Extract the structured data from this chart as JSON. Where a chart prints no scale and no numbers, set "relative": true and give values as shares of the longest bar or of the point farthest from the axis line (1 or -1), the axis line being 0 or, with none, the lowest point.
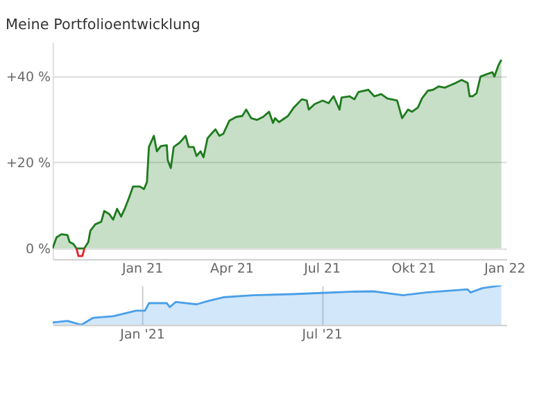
{
  "chart_data": [
    {
      "type": "area",
      "title": "Meine Portfolioentwicklung",
      "xlim": [
        "2020-10-03",
        "2022-01-03"
      ],
      "xticks": [
        {
          "value": "2021-01-01",
          "label": "Jan 21"
        },
        {
          "value": "2021-04-01",
          "label": "Apr 21"
        },
        {
          "value": "2021-07-01",
          "label": "Jul 21"
        },
        {
          "value": "2021-10-01",
          "label": "Okt 21"
        },
        {
          "value": "2022-01-01",
          "label": "Jan 22"
        }
      ],
      "ylim": [
        -2.5,
        48
      ],
      "yticks": [
        {
          "value": 0,
          "label": "0 %"
        },
        {
          "value": 20,
          "label": "+20 %"
        },
        {
          "value": 40,
          "label": "+40 %"
        }
      ],
      "grid": "y",
      "series": [
        {
          "type": "area",
          "color": "#1e7b1e",
          "x": [
            "2020-10-03",
            "2020-10-07",
            "2020-10-12",
            "2020-10-18",
            "2020-10-20",
            "2020-10-24",
            "2020-10-27",
            "2020-11-04",
            "2020-11-08",
            "2020-11-10",
            "2020-11-15",
            "2020-11-21",
            "2020-11-24",
            "2020-11-29",
            "2020-12-03",
            "2020-12-07",
            "2020-12-11",
            "2020-12-15",
            "2020-12-19",
            "2020-12-23",
            "2020-12-30",
            "2021-01-03",
            "2021-01-06",
            "2021-01-08",
            "2021-01-13",
            "2021-01-16",
            "2021-01-20",
            "2021-01-26",
            "2021-01-27",
            "2021-01-30",
            "2021-02-02",
            "2021-02-08",
            "2021-02-14",
            "2021-02-17",
            "2021-02-22",
            "2021-02-25",
            "2021-03-01",
            "2021-03-04",
            "2021-03-08",
            "2021-03-12",
            "2021-03-16",
            "2021-03-20",
            "2021-03-24",
            "2021-03-30",
            "2021-04-06",
            "2021-04-12",
            "2021-04-16",
            "2021-04-21",
            "2021-04-27",
            "2021-05-03",
            "2021-05-09",
            "2021-05-13",
            "2021-05-15",
            "2021-05-19",
            "2021-05-28",
            "2021-06-03",
            "2021-06-11",
            "2021-06-16",
            "2021-06-18",
            "2021-06-24",
            "2021-07-02",
            "2021-07-08",
            "2021-07-13",
            "2021-07-19",
            "2021-07-21",
            "2021-07-29",
            "2021-08-03",
            "2021-08-07",
            "2021-08-17",
            "2021-08-23",
            "2021-08-30",
            "2021-09-05",
            "2021-09-15",
            "2021-09-20",
            "2021-09-26",
            "2021-09-30",
            "2021-10-06",
            "2021-10-10",
            "2021-10-16",
            "2021-10-21",
            "2021-10-27",
            "2021-11-02",
            "2021-11-07",
            "2021-11-13",
            "2021-11-19",
            "2021-11-25",
            "2021-11-27",
            "2021-11-30",
            "2021-12-04",
            "2021-12-08",
            "2021-12-14",
            "2021-12-20",
            "2021-12-22",
            "2021-12-26",
            "2021-12-29"
          ],
          "values": [
            0,
            2.6,
            3.3,
            3.1,
            1.5,
            1,
            0,
            0,
            1.5,
            4.1,
            5.6,
            6.2,
            8.7,
            8,
            6.7,
            9.2,
            7.4,
            9.4,
            11.8,
            14.4,
            14.4,
            13.8,
            15.4,
            23.6,
            26.2,
            22.6,
            23.8,
            24,
            20.5,
            18.7,
            23.6,
            24.6,
            26.2,
            23.6,
            23.6,
            21.5,
            22.6,
            21.2,
            25.6,
            26.7,
            27.7,
            26.2,
            26.7,
            29.7,
            30.6,
            30.8,
            32.3,
            30.3,
            29.9,
            30.6,
            31.8,
            29.2,
            30.3,
            29.4,
            30.8,
            32.8,
            34.7,
            34.4,
            32.3,
            33.6,
            34.4,
            33.8,
            35.4,
            32.3,
            35.1,
            35.4,
            34.7,
            36.4,
            36.9,
            35.4,
            35.9,
            34.9,
            34.4,
            30.3,
            32.3,
            31.8,
            32.8,
            34.9,
            36.7,
            36.9,
            37.7,
            37.4,
            37.9,
            38.5,
            39.2,
            38.5,
            35.4,
            35.4,
            36.1,
            40,
            40.5,
            41,
            40,
            42.6,
            43.9
          ]
        },
        {
          "type": "line",
          "color": "#e8202a",
          "x": [
            "2020-10-27",
            "2020-10-29",
            "2020-11-02",
            "2020-11-04"
          ],
          "values": [
            0,
            -1.8,
            -1.8,
            0
          ]
        }
      ]
    },
    {
      "type": "area",
      "relative": true,
      "xlim": [
        "2020-10-03",
        "2022-01-03"
      ],
      "xticks": [
        {
          "value": "2021-01-01",
          "label": "Jan '21"
        },
        {
          "value": "2021-07-01",
          "label": "Jul '21"
        }
      ],
      "grid": "x",
      "series": [
        {
          "color": "#4a9fe8",
          "x": [
            "2020-10-03",
            "2020-10-18",
            "2020-11-01",
            "2020-11-13",
            "2020-12-03",
            "2020-12-26",
            "2021-01-04",
            "2021-01-08",
            "2021-01-26",
            "2021-01-29",
            "2021-02-04",
            "2021-02-25",
            "2021-03-08",
            "2021-03-24",
            "2021-04-23",
            "2021-06-02",
            "2021-07-02",
            "2021-07-29",
            "2021-08-22",
            "2021-09-21",
            "2021-10-14",
            "2021-11-25",
            "2021-11-28",
            "2021-12-10",
            "2021-12-29"
          ],
          "values": [
            0.06,
            0.1,
            0,
            0.18,
            0.22,
            0.36,
            0.36,
            0.55,
            0.55,
            0.45,
            0.58,
            0.52,
            0.6,
            0.7,
            0.75,
            0.78,
            0.81,
            0.84,
            0.85,
            0.75,
            0.82,
            0.9,
            0.82,
            0.93,
            1
          ]
        }
      ]
    }
  ]
}
